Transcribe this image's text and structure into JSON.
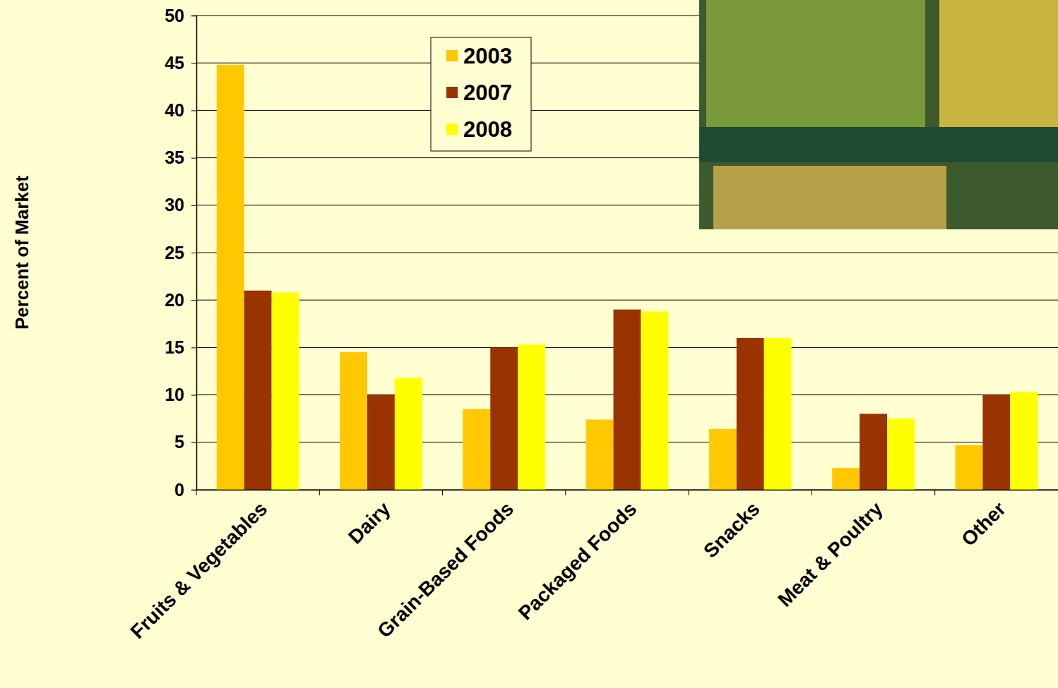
{
  "chart_data": {
    "type": "bar",
    "y_label": "Percent of Market",
    "categories": [
      "Fruits & Vegetables",
      "Dairy",
      "Grain-Based Foods",
      "Packaged Foods",
      "Snacks",
      "Meat & Poultry",
      "Other"
    ],
    "series": [
      {
        "name": "2003",
        "color": "#FFC800",
        "values": [
          44.8,
          14.5,
          8.5,
          7.4,
          6.4,
          2.3,
          4.7
        ]
      },
      {
        "name": "2007",
        "color": "#993300",
        "values": [
          21,
          10,
          15,
          19,
          16,
          8,
          10
        ]
      },
      {
        "name": "2008",
        "color": "#FFFF00",
        "values": [
          20.8,
          11.8,
          15.3,
          18.8,
          16,
          7.5,
          10.3
        ]
      }
    ],
    "ylim": [
      0,
      50
    ],
    "yticks": [
      0,
      5,
      10,
      15,
      20,
      25,
      30,
      35,
      40,
      45,
      50
    ],
    "grid": true,
    "legend": "top"
  }
}
